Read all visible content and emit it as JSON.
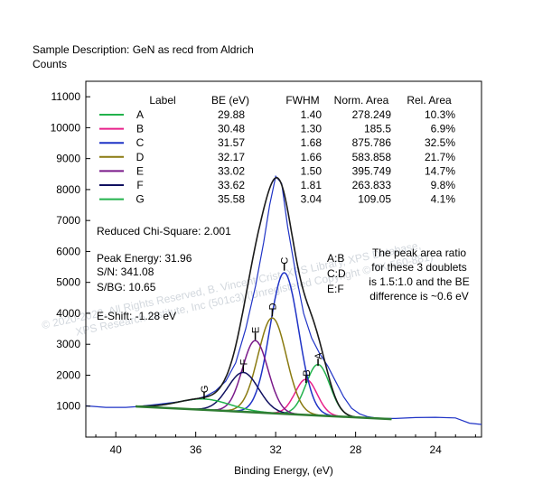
{
  "header": {
    "sample_description": "Sample Description:  GeN as recd from Aldrich",
    "counts_label": "Counts"
  },
  "watermark": {
    "line1": "© 2020-2022, All Rights Reserved,  B. Vincent Crist,  XPS Library, XPS Database,",
    "line2": "XPS Research Institute, Inc (501c3)   (Unregistered Copyright © TX-560-881)"
  },
  "chart_data": {
    "type": "line",
    "title": "",
    "xlabel": "Binding Energy, (eV)",
    "ylabel": "Counts",
    "xlim": [
      41.5,
      21.7
    ],
    "ylim": [
      0,
      11500
    ],
    "x_reversed": true,
    "grid": false,
    "x_ticks": [
      40,
      36,
      32,
      28,
      24
    ],
    "y_ticks": [
      1000,
      2000,
      3000,
      4000,
      5000,
      6000,
      7000,
      8000,
      9000,
      10000,
      11000
    ],
    "table_headers": [
      "Label",
      "BE (eV)",
      "FWHM",
      "Norm. Area",
      "Rel. Area"
    ],
    "components": [
      {
        "label": "A",
        "be": "29.88",
        "fwhm": "1.40",
        "norm_area": "278.249",
        "rel_area": "10.3%",
        "color": "#22b24c",
        "height": 1650
      },
      {
        "label": "B",
        "be": "30.48",
        "fwhm": "1.30",
        "norm_area": "185.5",
        "rel_area": "6.9%",
        "color": "#e8208a",
        "height": 1150
      },
      {
        "label": "C",
        "be": "31.57",
        "fwhm": "1.68",
        "norm_area": "875.786",
        "rel_area": "32.5%",
        "color": "#1f33c6",
        "height": 4560
      },
      {
        "label": "D",
        "be": "32.17",
        "fwhm": "1.66",
        "norm_area": "583.858",
        "rel_area": "21.7%",
        "color": "#8a7a10",
        "height": 3080
      },
      {
        "label": "E",
        "be": "33.02",
        "fwhm": "1.50",
        "norm_area": "395.749",
        "rel_area": "14.7%",
        "color": "#7a1a8a",
        "height": 2320
      },
      {
        "label": "F",
        "be": "33.62",
        "fwhm": "1.81",
        "norm_area": "263.833",
        "rel_area": "9.8%",
        "color": "#101060",
        "height": 1270
      },
      {
        "label": "G",
        "be": "35.58",
        "fwhm": "3.04",
        "norm_area": "109.05",
        "rel_area": "4.1%",
        "color": "#22b24c",
        "height": 350
      }
    ],
    "peak_label_ticks": [
      {
        "label": "A",
        "x": 29.88,
        "y": 2300
      },
      {
        "label": "B",
        "x": 30.48,
        "y": 1750
      },
      {
        "label": "C",
        "x": 31.57,
        "y": 5380
      },
      {
        "label": "D",
        "x": 32.17,
        "y": 3900
      },
      {
        "label": "E",
        "x": 33.02,
        "y": 3140
      },
      {
        "label": "F",
        "x": 33.62,
        "y": 2100
      },
      {
        "label": "G",
        "x": 35.58,
        "y": 1230
      }
    ],
    "background_line": {
      "x": [
        39.0,
        26.2
      ],
      "y": [
        990,
        580
      ]
    },
    "raw_series": {
      "x": [
        41.5,
        40.5,
        39.5,
        39.0,
        38.0,
        37.0,
        36.5,
        36.0,
        35.5,
        35.0,
        34.5,
        34.0,
        33.5,
        33.0,
        32.6,
        32.3,
        32.0,
        31.7,
        31.4,
        31.0,
        30.6,
        30.2,
        29.8,
        29.4,
        29.0,
        28.6,
        28.2,
        27.8,
        27.4,
        27.0,
        26.5,
        26.0,
        25.0,
        24.0,
        23.0,
        22.3,
        21.7
      ],
      "y": [
        1010,
        960,
        960,
        980,
        1050,
        1130,
        1180,
        1230,
        1320,
        1500,
        1800,
        2400,
        3500,
        4900,
        6300,
        7500,
        8430,
        8200,
        6800,
        5300,
        4000,
        3200,
        2700,
        2300,
        1800,
        1300,
        930,
        750,
        660,
        620,
        600,
        600,
        630,
        640,
        620,
        450,
        410
      ]
    },
    "annotations": {
      "chi_square": "Reduced Chi-Square: 2.001",
      "peak_energy": "Peak Energy: 31.96",
      "sn": "S/N: 341.08",
      "sbg": "S/BG: 10.65",
      "eshift": "E-Shift: -1.28 eV",
      "doublets": [
        "A:B",
        "C:D",
        "E:F"
      ],
      "note": [
        "The peak area ratio",
        "for these 3 doublets",
        "is 1.5:1.0 and the BE",
        "difference is ~0.6 eV"
      ]
    },
    "colors": {
      "envelope": "#1a1a1a",
      "raw": "#1f33c6",
      "background": "#2e7d32"
    }
  }
}
